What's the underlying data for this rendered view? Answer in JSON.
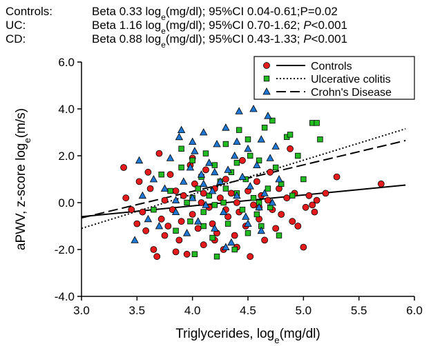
{
  "annotations": [
    {
      "group": "Controls:",
      "pre": "Beta 0.33 log",
      "sub": "e",
      "post": "(mg/dl); 95%CI 0.04-0.61;P=0.02",
      "p_italic": ""
    },
    {
      "group": "UC:",
      "pre": "Beta 1.16 log",
      "sub": "e",
      "post": "(mg/dl); 95%CI 0.70-1.62; ",
      "p_italic": "P",
      "p_rest": "<0.001"
    },
    {
      "group": "CD:",
      "pre": "Beta 0.88 log",
      "sub": "e",
      "post": "(mg/dl); 95%CI 0.43-1.33; ",
      "p_italic": "P",
      "p_rest": "<0.001"
    }
  ],
  "chart_data": {
    "type": "scatter",
    "xlabel_pre": "Triglycerides, log",
    "xlabel_sub": "e",
    "xlabel_post": "(mg/dl)",
    "ylabel_pre": "aPWV, z-score log",
    "ylabel_sub": "e",
    "ylabel_post": "(m/s)",
    "xlim": [
      3.0,
      6.0
    ],
    "ylim": [
      -4.0,
      6.0
    ],
    "xticks": [
      "3.0",
      "3.5",
      "4.0",
      "4.5",
      "5.0",
      "5.5",
      "6.0"
    ],
    "yticks": [
      "-4.0",
      "-2.0",
      "0.0",
      "2.0",
      "4.0",
      "6.0"
    ],
    "legend_position": "top-right",
    "grid": false,
    "series": [
      {
        "name": "Controls",
        "marker": "circle",
        "color": "#e41a1c",
        "line_style": "solid",
        "fit": [
          [
            3.0,
            -0.6
          ],
          [
            5.92,
            0.75
          ]
        ],
        "points": [
          [
            3.38,
            1.5
          ],
          [
            3.4,
            0.2
          ],
          [
            3.45,
            -0.3
          ],
          [
            3.5,
            -0.9
          ],
          [
            3.52,
            0.9
          ],
          [
            3.55,
            -0.4
          ],
          [
            3.58,
            -1.2
          ],
          [
            3.6,
            1.3
          ],
          [
            3.62,
            0.6
          ],
          [
            3.65,
            -2.0
          ],
          [
            3.68,
            -2.3
          ],
          [
            3.7,
            2.1
          ],
          [
            3.72,
            -0.7
          ],
          [
            3.75,
            0.1
          ],
          [
            3.78,
            -1.0
          ],
          [
            3.8,
            1.2
          ],
          [
            3.82,
            -0.3
          ],
          [
            3.85,
            0.5
          ],
          [
            3.88,
            -1.6
          ],
          [
            3.9,
            -0.8
          ],
          [
            3.92,
            0.3
          ],
          [
            3.95,
            -2.2
          ],
          [
            3.98,
            1.6
          ],
          [
            4.0,
            -0.5
          ],
          [
            4.02,
            0.8
          ],
          [
            4.05,
            -1.1
          ],
          [
            4.08,
            0.0
          ],
          [
            4.1,
            -1.8
          ],
          [
            4.12,
            1.4
          ],
          [
            4.15,
            -0.2
          ],
          [
            4.18,
            -0.9
          ],
          [
            4.2,
            0.6
          ],
          [
            4.22,
            -1.3
          ],
          [
            4.25,
            0.2
          ],
          [
            4.28,
            -2.0
          ],
          [
            4.3,
            1.0
          ],
          [
            4.32,
            -0.6
          ],
          [
            4.35,
            0.4
          ],
          [
            4.38,
            -1.4
          ],
          [
            4.4,
            0.0
          ],
          [
            4.42,
            -0.4
          ],
          [
            4.45,
            1.8
          ],
          [
            4.48,
            -1.0
          ],
          [
            4.5,
            0.5
          ],
          [
            4.52,
            -2.3
          ],
          [
            4.55,
            -0.1
          ],
          [
            4.58,
            0.9
          ],
          [
            4.6,
            -0.7
          ],
          [
            4.62,
            0.3
          ],
          [
            4.65,
            -1.6
          ],
          [
            4.68,
            0.1
          ],
          [
            4.7,
            1.3
          ],
          [
            4.72,
            -0.3
          ],
          [
            4.75,
            -1.1
          ],
          [
            4.78,
            0.6
          ],
          [
            4.8,
            -0.5
          ],
          [
            4.85,
            0.2
          ],
          [
            4.88,
            2.3
          ],
          [
            4.9,
            -0.8
          ],
          [
            4.92,
            0.4
          ],
          [
            4.95,
            -1.0
          ],
          [
            5.0,
            -1.9
          ],
          [
            5.02,
            -0.2
          ],
          [
            5.05,
            0.3
          ],
          [
            5.08,
            -0.1
          ],
          [
            5.1,
            -0.4
          ],
          [
            5.12,
            0.1
          ],
          [
            5.2,
            0.4
          ],
          [
            5.3,
            1.1
          ],
          [
            5.7,
            0.8
          ],
          [
            3.75,
            -1.4
          ],
          [
            3.85,
            -2.1
          ],
          [
            4.0,
            1.9
          ],
          [
            4.2,
            -1.6
          ],
          [
            4.4,
            -1.9
          ],
          [
            4.6,
            -0.2
          ],
          [
            4.3,
            -0.3
          ],
          [
            4.1,
            0.4
          ]
        ]
      },
      {
        "name": "Ulcerative colitis",
        "marker": "square",
        "color": "#22bb22",
        "line_style": "dotted",
        "fit": [
          [
            3.0,
            -1.1
          ],
          [
            5.92,
            3.15
          ]
        ],
        "points": [
          [
            3.65,
            -0.3
          ],
          [
            3.72,
            1.2
          ],
          [
            3.8,
            0.5
          ],
          [
            3.85,
            -1.2
          ],
          [
            3.9,
            2.3
          ],
          [
            3.95,
            0.0
          ],
          [
            3.98,
            -0.8
          ],
          [
            4.0,
            1.8
          ],
          [
            4.02,
            -2.2
          ],
          [
            4.05,
            0.6
          ],
          [
            4.08,
            1.1
          ],
          [
            4.1,
            -0.4
          ],
          [
            4.12,
            2.1
          ],
          [
            4.15,
            0.3
          ],
          [
            4.18,
            -1.5
          ],
          [
            4.2,
            1.6
          ],
          [
            4.22,
            -2.3
          ],
          [
            4.25,
            0.9
          ],
          [
            4.28,
            0.0
          ],
          [
            4.3,
            2.5
          ],
          [
            4.32,
            -0.9
          ],
          [
            4.35,
            1.3
          ],
          [
            4.38,
            -2.0
          ],
          [
            4.4,
            0.4
          ],
          [
            4.42,
            3.1
          ],
          [
            4.45,
            -0.3
          ],
          [
            4.48,
            1.0
          ],
          [
            4.5,
            -1.3
          ],
          [
            4.52,
            2.0
          ],
          [
            4.55,
            0.2
          ],
          [
            4.58,
            -0.5
          ],
          [
            4.6,
            1.8
          ],
          [
            4.62,
            -1.0
          ],
          [
            4.65,
            3.2
          ],
          [
            4.68,
            0.6
          ],
          [
            4.7,
            -0.2
          ],
          [
            4.72,
            3.5
          ],
          [
            4.75,
            1.5
          ],
          [
            4.78,
            -1.4
          ],
          [
            4.8,
            0.8
          ],
          [
            4.85,
            2.8
          ],
          [
            4.88,
            2.9
          ],
          [
            4.9,
            0.3
          ],
          [
            4.95,
            2.0
          ],
          [
            5.08,
            3.4
          ],
          [
            5.12,
            3.4
          ],
          [
            5.15,
            2.7
          ],
          [
            5.0,
            1.0
          ],
          [
            4.6,
            0.0
          ],
          [
            4.3,
            0.6
          ],
          [
            4.1,
            -1.0
          ],
          [
            4.0,
            0.2
          ],
          [
            3.9,
            1.5
          ],
          [
            4.2,
            -0.1
          ],
          [
            4.5,
            2.7
          ],
          [
            4.4,
            1.7
          ]
        ]
      },
      {
        "name": "Crohn's Disease",
        "marker": "triangle",
        "color": "#1f77d4",
        "line_style": "dashed",
        "fit": [
          [
            3.0,
            -0.65
          ],
          [
            5.92,
            2.65
          ]
        ],
        "points": [
          [
            3.48,
            -1.6
          ],
          [
            3.52,
            1.8
          ],
          [
            3.55,
            0.3
          ],
          [
            3.6,
            -0.7
          ],
          [
            3.65,
            1.0
          ],
          [
            3.7,
            -1.0
          ],
          [
            3.75,
            0.6
          ],
          [
            3.8,
            1.9
          ],
          [
            3.85,
            -0.4
          ],
          [
            3.88,
            2.8
          ],
          [
            3.9,
            3.1
          ],
          [
            3.92,
            0.9
          ],
          [
            3.95,
            -1.3
          ],
          [
            3.98,
            1.5
          ],
          [
            4.0,
            0.2
          ],
          [
            4.02,
            2.2
          ],
          [
            4.05,
            -0.8
          ],
          [
            4.08,
            1.2
          ],
          [
            4.1,
            3.0
          ],
          [
            4.12,
            -0.1
          ],
          [
            4.15,
            1.7
          ],
          [
            4.18,
            0.5
          ],
          [
            4.2,
            -1.1
          ],
          [
            4.22,
            2.5
          ],
          [
            4.25,
            0.9
          ],
          [
            4.28,
            -0.4
          ],
          [
            4.3,
            3.2
          ],
          [
            4.32,
            1.4
          ],
          [
            4.35,
            -1.7
          ],
          [
            4.38,
            2.0
          ],
          [
            4.4,
            0.3
          ],
          [
            4.42,
            3.9
          ],
          [
            4.45,
            1.1
          ],
          [
            4.48,
            -0.6
          ],
          [
            4.5,
            2.3
          ],
          [
            4.52,
            0.7
          ],
          [
            4.55,
            4.0
          ],
          [
            4.58,
            1.6
          ],
          [
            4.6,
            -0.2
          ],
          [
            4.62,
            2.7
          ],
          [
            4.65,
            0.4
          ],
          [
            4.68,
            3.7
          ],
          [
            4.7,
            1.9
          ],
          [
            4.72,
            0.0
          ],
          [
            4.75,
            2.4
          ],
          [
            4.78,
            1.0
          ],
          [
            4.62,
            -1.2
          ],
          [
            4.3,
            -1.9
          ],
          [
            4.2,
            1.3
          ],
          [
            4.0,
            2.6
          ],
          [
            3.85,
            0.1
          ],
          [
            4.5,
            -0.9
          ],
          [
            4.1,
            0.8
          ],
          [
            4.4,
            2.6
          ]
        ]
      }
    ]
  }
}
